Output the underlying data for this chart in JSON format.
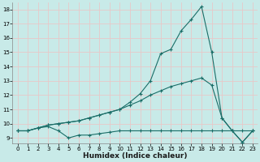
{
  "xlabel": "Humidex (Indice chaleur)",
  "xlim": [
    -0.5,
    23.5
  ],
  "ylim": [
    8.6,
    18.5
  ],
  "yticks": [
    9,
    10,
    11,
    12,
    13,
    14,
    15,
    16,
    17,
    18
  ],
  "xticks": [
    0,
    1,
    2,
    3,
    4,
    5,
    6,
    7,
    8,
    9,
    10,
    11,
    12,
    13,
    14,
    15,
    16,
    17,
    18,
    19,
    20,
    21,
    22,
    23
  ],
  "bg_color": "#c8eae8",
  "line_color": "#1a6e68",
  "grid_color": "#e8c8c8",
  "line1_x": [
    0,
    1,
    2,
    3,
    4,
    5,
    6,
    7,
    8,
    9,
    10,
    11,
    12,
    13,
    14,
    15,
    16,
    17,
    18,
    19,
    20,
    21,
    22,
    23
  ],
  "line1_y": [
    9.5,
    9.5,
    9.7,
    9.8,
    9.5,
    9.0,
    9.2,
    9.2,
    9.3,
    9.4,
    9.5,
    9.5,
    9.5,
    9.5,
    9.5,
    9.5,
    9.5,
    9.5,
    9.5,
    9.5,
    9.5,
    9.5,
    9.5,
    9.5
  ],
  "line2_x": [
    0,
    1,
    2,
    3,
    4,
    5,
    6,
    7,
    8,
    9,
    10,
    11,
    12,
    13,
    14,
    15,
    16,
    17,
    18,
    19,
    20,
    21,
    22,
    23
  ],
  "line2_y": [
    9.5,
    9.5,
    9.7,
    9.9,
    10.0,
    10.1,
    10.2,
    10.4,
    10.6,
    10.8,
    11.0,
    11.3,
    11.6,
    12.0,
    12.3,
    12.6,
    12.8,
    13.0,
    13.2,
    12.7,
    10.4,
    9.5,
    8.7,
    9.5
  ],
  "line3_x": [
    0,
    1,
    2,
    3,
    4,
    5,
    6,
    7,
    8,
    9,
    10,
    11,
    12,
    13,
    14,
    15,
    16,
    17,
    18,
    19,
    20,
    21,
    22,
    23
  ],
  "line3_y": [
    9.5,
    9.5,
    9.7,
    9.9,
    10.0,
    10.1,
    10.2,
    10.4,
    10.6,
    10.8,
    11.0,
    11.5,
    12.1,
    13.0,
    14.9,
    15.2,
    16.5,
    17.3,
    18.2,
    15.0,
    10.4,
    9.5,
    8.7,
    9.5
  ]
}
